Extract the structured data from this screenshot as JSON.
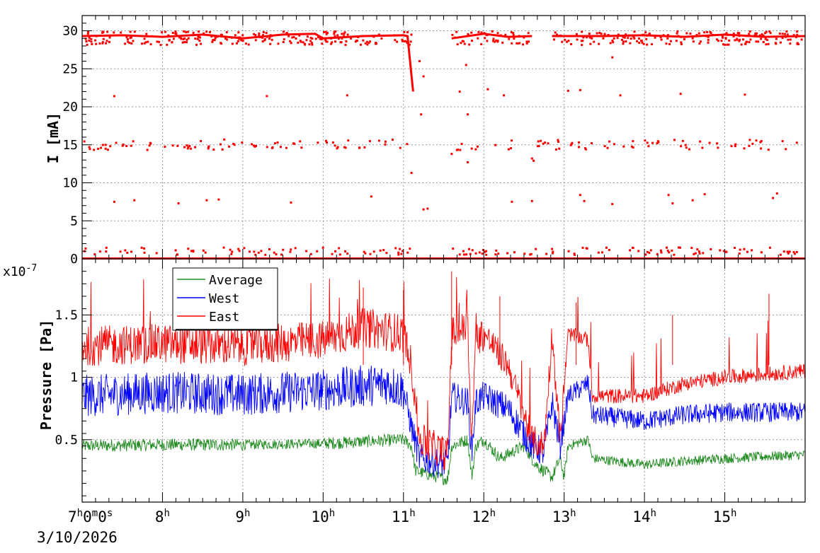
{
  "chart_data": [
    {
      "type": "scatter",
      "ylabel": "I [mA]",
      "ylim": [
        0,
        32
      ],
      "yticks": [
        0,
        5,
        10,
        15,
        20,
        25,
        30
      ],
      "grid": true,
      "xlim_hours": [
        7.0,
        16.0
      ],
      "series": [
        {
          "color": "#ff0000",
          "baseline": [
            [
              7.0,
              29.3
            ],
            [
              7.5,
              29.4
            ],
            [
              8.0,
              29.2
            ],
            [
              8.5,
              29.5
            ],
            [
              9.0,
              29.0
            ],
            [
              9.5,
              29.5
            ],
            [
              9.9,
              29.6
            ],
            [
              10.0,
              29.0
            ],
            [
              10.5,
              29.3
            ],
            [
              11.0,
              29.4
            ],
            [
              11.05,
              29.3
            ],
            [
              11.12,
              22.0
            ]
          ],
          "segments": [
            [
              [
                11.6,
                29.0
              ],
              [
                12.0,
                29.6
              ],
              [
                12.3,
                29.2
              ],
              [
                12.6,
                29.3
              ]
            ],
            [
              [
                12.85,
                29.3
              ],
              [
                13.5,
                29.3
              ],
              [
                14.0,
                29.4
              ],
              [
                14.5,
                29.2
              ],
              [
                15.0,
                29.5
              ],
              [
                15.5,
                29.2
              ],
              [
                16.0,
                29.3
              ]
            ]
          ],
          "outliers": [
            [
              7.4,
              21.4
            ],
            [
              10.3,
              21.5
            ],
            [
              9.3,
              21.4
            ],
            [
              11.2,
              26.0
            ],
            [
              11.25,
              24.0
            ],
            [
              11.22,
              19.0
            ],
            [
              11.1,
              11.3
            ],
            [
              11.25,
              6.5
            ],
            [
              11.3,
              6.6
            ],
            [
              11.7,
              22.0
            ],
            [
              11.78,
              25.5
            ],
            [
              11.8,
              19.0
            ],
            [
              11.8,
              12.7
            ],
            [
              11.85,
              14.5
            ],
            [
              11.6,
              13.8
            ],
            [
              12.05,
              22.3
            ],
            [
              12.25,
              21.5
            ],
            [
              13.05,
              22.1
            ],
            [
              13.2,
              22.2
            ],
            [
              13.7,
              21.5
            ],
            [
              14.45,
              21.7
            ],
            [
              15.25,
              21.6
            ],
            [
              13.6,
              26.5
            ],
            [
              12.6,
              13.2
            ],
            [
              12.62,
              12.9
            ],
            [
              7.4,
              7.5
            ],
            [
              7.65,
              7.7
            ],
            [
              8.2,
              7.3
            ],
            [
              8.55,
              7.7
            ],
            [
              8.7,
              7.8
            ],
            [
              9.6,
              7.4
            ],
            [
              10.6,
              8.2
            ],
            [
              12.35,
              7.5
            ],
            [
              12.6,
              7.6
            ],
            [
              13.2,
              8.4
            ],
            [
              13.25,
              7.6
            ],
            [
              13.6,
              7.2
            ],
            [
              14.3,
              8.4
            ],
            [
              14.35,
              7.3
            ],
            [
              14.6,
              7.7
            ],
            [
              14.75,
              8.5
            ],
            [
              15.6,
              8.0
            ],
            [
              15.65,
              8.6
            ]
          ],
          "band_15": [
            7.0,
            16.0
          ],
          "band_1": [
            7.0,
            16.0
          ]
        }
      ]
    },
    {
      "type": "line",
      "ylabel": "Pressure [Pa]",
      "yscale_label": "x10",
      "yscale_exponent": "-7",
      "ylim": [
        0.0,
        1.95
      ],
      "yticks": [
        0.5,
        1,
        1.5
      ],
      "ytick_labels": [
        "0.5",
        "1",
        "1.5"
      ],
      "grid": true,
      "legend_position": "top-left",
      "xlim_hours": [
        7.0,
        16.0
      ],
      "xtick_hours": [
        8,
        9,
        10,
        11,
        12,
        13,
        14,
        15
      ],
      "xtick_labels": [
        "8",
        "9",
        "10",
        "11",
        "12",
        "13",
        "14",
        "15"
      ],
      "xtick_suffix": "h",
      "x_origin_label": {
        "h": "7",
        "m": "0",
        "s": "0",
        "unit_h": "h",
        "unit_m": "m",
        "unit_s": "s"
      },
      "x_date": "3/10/2026",
      "series": [
        {
          "name": "Average",
          "color": "#208a20",
          "profile": [
            [
              7.0,
              0.45
            ],
            [
              8.0,
              0.46
            ],
            [
              9.0,
              0.46
            ],
            [
              10.0,
              0.47
            ],
            [
              11.0,
              0.5
            ],
            [
              11.1,
              0.45
            ],
            [
              11.15,
              0.25
            ],
            [
              11.55,
              0.18
            ],
            [
              11.6,
              0.45
            ],
            [
              11.8,
              0.5
            ],
            [
              11.85,
              0.2
            ],
            [
              11.9,
              0.45
            ],
            [
              12.0,
              0.5
            ],
            [
              12.2,
              0.35
            ],
            [
              12.5,
              0.45
            ],
            [
              12.65,
              0.3
            ],
            [
              12.85,
              0.2
            ],
            [
              12.95,
              0.35
            ],
            [
              13.0,
              0.2
            ],
            [
              13.05,
              0.45
            ],
            [
              13.3,
              0.5
            ],
            [
              13.35,
              0.35
            ],
            [
              14.0,
              0.3
            ],
            [
              14.5,
              0.33
            ],
            [
              15.0,
              0.35
            ],
            [
              16.0,
              0.38
            ]
          ],
          "noise": [
            0.05,
            0.05,
            0.04,
            0.05,
            0.05,
            0.05,
            0.04,
            0.04,
            0.04
          ]
        },
        {
          "name": "West",
          "color": "#0000ff",
          "profile": [
            [
              7.0,
              0.85
            ],
            [
              8.0,
              0.88
            ],
            [
              9.0,
              0.86
            ],
            [
              10.0,
              0.9
            ],
            [
              10.8,
              0.95
            ],
            [
              11.0,
              0.9
            ],
            [
              11.1,
              0.6
            ],
            [
              11.2,
              0.35
            ],
            [
              11.55,
              0.3
            ],
            [
              11.6,
              0.85
            ],
            [
              11.8,
              0.8
            ],
            [
              11.85,
              0.4
            ],
            [
              11.9,
              0.8
            ],
            [
              12.0,
              0.85
            ],
            [
              12.3,
              0.75
            ],
            [
              12.6,
              0.45
            ],
            [
              12.75,
              0.4
            ],
            [
              12.85,
              0.8
            ],
            [
              12.95,
              0.45
            ],
            [
              13.05,
              0.85
            ],
            [
              13.3,
              0.95
            ],
            [
              13.35,
              0.7
            ],
            [
              14.0,
              0.65
            ],
            [
              14.5,
              0.7
            ],
            [
              15.0,
              0.72
            ],
            [
              16.0,
              0.72
            ]
          ],
          "noise": [
            0.17,
            0.17,
            0.17,
            0.17,
            0.12,
            0.12,
            0.08,
            0.08,
            0.08
          ]
        },
        {
          "name": "East",
          "color": "#ff0000",
          "profile": [
            [
              7.0,
              1.25
            ],
            [
              8.0,
              1.27
            ],
            [
              9.0,
              1.25
            ],
            [
              10.0,
              1.3
            ],
            [
              10.5,
              1.4
            ],
            [
              11.0,
              1.35
            ],
            [
              11.1,
              1.1
            ],
            [
              11.2,
              0.5
            ],
            [
              11.55,
              0.38
            ],
            [
              11.6,
              1.35
            ],
            [
              11.8,
              1.4
            ],
            [
              11.85,
              0.5
            ],
            [
              11.9,
              1.3
            ],
            [
              12.0,
              1.35
            ],
            [
              12.3,
              1.1
            ],
            [
              12.6,
              0.5
            ],
            [
              12.75,
              0.45
            ],
            [
              12.85,
              1.35
            ],
            [
              12.95,
              0.5
            ],
            [
              13.05,
              1.35
            ],
            [
              13.3,
              1.3
            ],
            [
              13.35,
              0.85
            ],
            [
              14.0,
              0.85
            ],
            [
              14.5,
              0.95
            ],
            [
              15.0,
              1.0
            ],
            [
              16.0,
              1.05
            ]
          ],
          "noise": [
            0.16,
            0.16,
            0.16,
            0.16,
            0.14,
            0.12,
            0.06,
            0.06,
            0.06
          ]
        }
      ]
    }
  ]
}
